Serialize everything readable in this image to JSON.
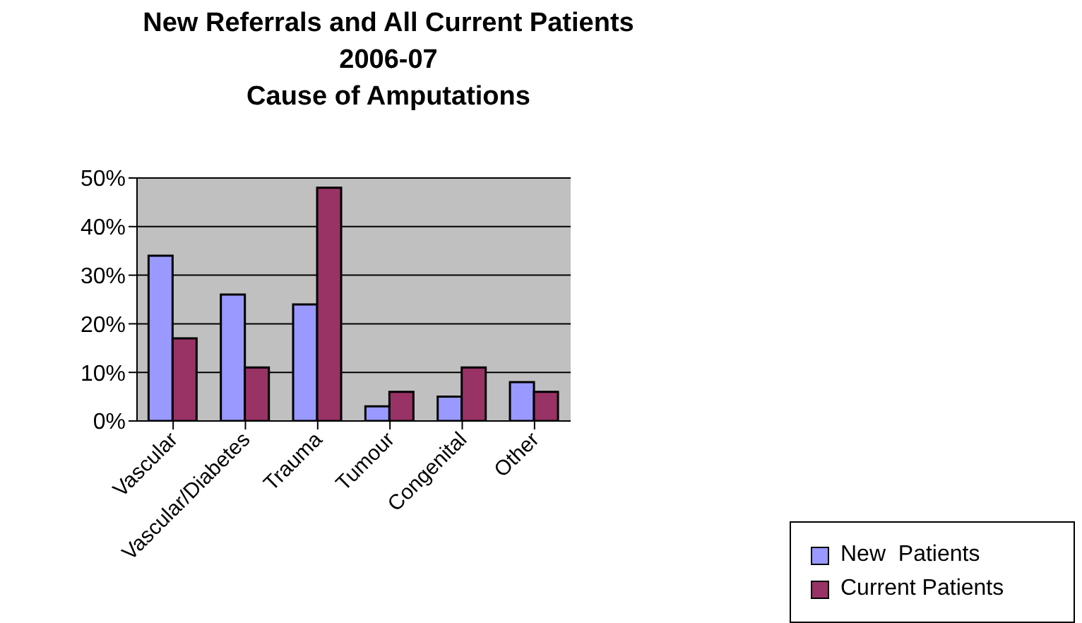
{
  "chart_data": {
    "type": "bar",
    "title": "New Referrals and All Current Patients\n2006-07\nCause of Amputations",
    "categories": [
      "Vascular",
      "Vascular/Diabetes",
      "Trauma",
      "Tumour",
      "Congenital",
      "Other"
    ],
    "series": [
      {
        "name": "New  Patients",
        "color": "#9999ff",
        "values": [
          34,
          26,
          24,
          3,
          5,
          8
        ]
      },
      {
        "name": "Current Patients",
        "color": "#993366",
        "values": [
          17,
          11,
          48,
          6,
          11,
          6
        ]
      }
    ],
    "ylim": [
      0,
      50
    ],
    "yticks": [
      {
        "value": 0,
        "label": "0%"
      },
      {
        "value": 10,
        "label": "10%"
      },
      {
        "value": 20,
        "label": "20%"
      },
      {
        "value": 30,
        "label": "30%"
      },
      {
        "value": 40,
        "label": "40%"
      },
      {
        "value": 50,
        "label": "50%"
      }
    ],
    "grid": "y",
    "legend": "bottom right"
  }
}
